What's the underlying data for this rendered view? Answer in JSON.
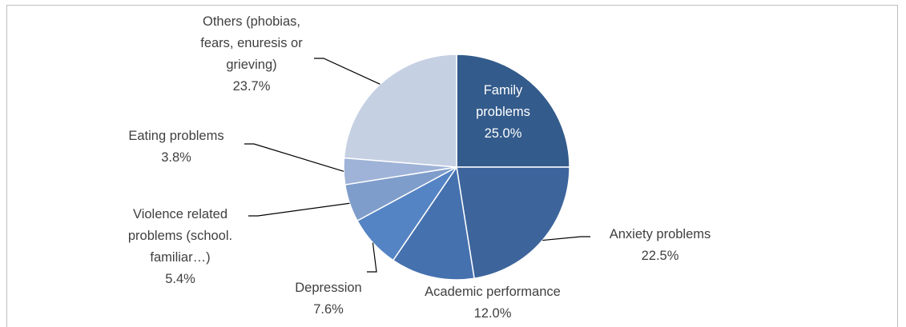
{
  "chart_data": {
    "type": "pie",
    "categories": [
      "Family problems",
      "Anxiety problems",
      "Academic performance",
      "Depression",
      "Violence related problems (school. familiar…)",
      "Eating problems",
      "Others (phobias, fears, enuresis or grieving)"
    ],
    "values": [
      25.0,
      22.5,
      12.0,
      7.6,
      5.4,
      3.8,
      23.7
    ],
    "value_labels": [
      "25.0%",
      "22.5%",
      "12.0%",
      "7.6%",
      "5.4%",
      "3.8%",
      "23.7%"
    ],
    "colors": [
      "#335b8b",
      "#3d659c",
      "#4671af",
      "#5584c4",
      "#7f9dcb",
      "#9fb3d8",
      "#c5d0e3"
    ]
  }
}
